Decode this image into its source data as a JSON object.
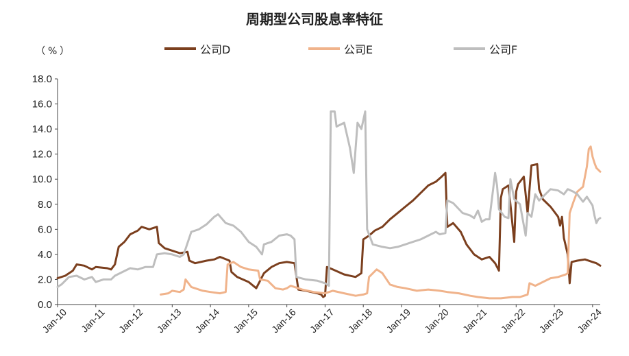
{
  "chart_data": {
    "type": "line",
    "title": "周期型公司股息率特征",
    "unit_label": "（%）",
    "ylim": [
      0,
      18
    ],
    "yticks": [
      "0.0",
      "2.0",
      "4.0",
      "6.0",
      "8.0",
      "10.0",
      "12.0",
      "14.0",
      "16.0",
      "18.0"
    ],
    "xticks": [
      "Jan-10",
      "Jan-11",
      "Jan-12",
      "Jan-13",
      "Jan-14",
      "Jan-15",
      "Jan-16",
      "Jan-17",
      "Jan-18",
      "Jan-19",
      "Jan-20",
      "Jan-21",
      "Jan-22",
      "Jan-23",
      "Jan-24"
    ],
    "x_range": [
      2010.0,
      2024.2
    ],
    "legend_position": "top",
    "series": [
      {
        "name": "公司D",
        "color": "#7B3F1E",
        "points": [
          [
            2010.0,
            2.1
          ],
          [
            2010.2,
            2.3
          ],
          [
            2010.4,
            2.7
          ],
          [
            2010.5,
            3.2
          ],
          [
            2010.7,
            3.1
          ],
          [
            2010.9,
            2.8
          ],
          [
            2011.0,
            3.0
          ],
          [
            2011.3,
            2.9
          ],
          [
            2011.4,
            2.8
          ],
          [
            2011.5,
            3.2
          ],
          [
            2011.6,
            4.6
          ],
          [
            2011.75,
            5.0
          ],
          [
            2011.9,
            5.6
          ],
          [
            2012.1,
            5.9
          ],
          [
            2012.2,
            6.2
          ],
          [
            2012.4,
            6.0
          ],
          [
            2012.6,
            6.2
          ],
          [
            2012.65,
            4.9
          ],
          [
            2012.8,
            4.5
          ],
          [
            2013.0,
            4.3
          ],
          [
            2013.2,
            4.1
          ],
          [
            2013.4,
            4.2
          ],
          [
            2013.45,
            3.5
          ],
          [
            2013.6,
            3.3
          ],
          [
            2013.9,
            3.5
          ],
          [
            2014.1,
            3.6
          ],
          [
            2014.25,
            3.8
          ],
          [
            2014.5,
            3.5
          ],
          [
            2014.55,
            2.6
          ],
          [
            2014.7,
            2.2
          ],
          [
            2015.0,
            1.8
          ],
          [
            2015.2,
            1.3
          ],
          [
            2015.4,
            2.5
          ],
          [
            2015.6,
            3.0
          ],
          [
            2015.8,
            3.3
          ],
          [
            2016.0,
            3.4
          ],
          [
            2016.2,
            3.3
          ],
          [
            2016.3,
            1.2
          ],
          [
            2016.5,
            1.1
          ],
          [
            2016.8,
            0.9
          ],
          [
            2016.9,
            0.8
          ],
          [
            2016.95,
            0.6
          ],
          [
            2017.0,
            0.7
          ],
          [
            2017.05,
            3.0
          ],
          [
            2017.2,
            2.8
          ],
          [
            2017.5,
            2.4
          ],
          [
            2017.8,
            2.2
          ],
          [
            2017.95,
            2.5
          ],
          [
            2018.0,
            5.2
          ],
          [
            2018.15,
            5.5
          ],
          [
            2018.3,
            5.9
          ],
          [
            2018.5,
            6.2
          ],
          [
            2018.7,
            6.8
          ],
          [
            2018.9,
            7.3
          ],
          [
            2019.1,
            7.8
          ],
          [
            2019.3,
            8.3
          ],
          [
            2019.5,
            8.9
          ],
          [
            2019.7,
            9.5
          ],
          [
            2019.9,
            9.8
          ],
          [
            2020.05,
            10.2
          ],
          [
            2020.15,
            10.5
          ],
          [
            2020.2,
            6.2
          ],
          [
            2020.35,
            6.5
          ],
          [
            2020.55,
            5.8
          ],
          [
            2020.7,
            4.8
          ],
          [
            2020.9,
            4.0
          ],
          [
            2021.1,
            3.6
          ],
          [
            2021.3,
            3.8
          ],
          [
            2021.45,
            3.3
          ],
          [
            2021.55,
            2.7
          ],
          [
            2021.6,
            8.5
          ],
          [
            2021.65,
            9.2
          ],
          [
            2021.8,
            9.5
          ],
          [
            2021.95,
            5.0
          ],
          [
            2022.0,
            9.0
          ],
          [
            2022.05,
            9.6
          ],
          [
            2022.2,
            10.2
          ],
          [
            2022.3,
            7.3
          ],
          [
            2022.4,
            11.1
          ],
          [
            2022.55,
            11.2
          ],
          [
            2022.6,
            9.2
          ],
          [
            2022.7,
            8.4
          ],
          [
            2022.9,
            7.8
          ],
          [
            2023.1,
            7.0
          ],
          [
            2023.15,
            6.3
          ],
          [
            2023.2,
            7.0
          ],
          [
            2023.25,
            5.3
          ],
          [
            2023.35,
            4.0
          ],
          [
            2023.4,
            1.7
          ],
          [
            2023.45,
            3.4
          ],
          [
            2023.6,
            3.5
          ],
          [
            2023.8,
            3.6
          ],
          [
            2024.0,
            3.4
          ],
          [
            2024.1,
            3.3
          ],
          [
            2024.2,
            3.1
          ]
        ]
      },
      {
        "name": "公司E",
        "color": "#F0B38B",
        "points": [
          [
            2012.7,
            0.8
          ],
          [
            2012.9,
            0.9
          ],
          [
            2013.0,
            1.1
          ],
          [
            2013.2,
            1.0
          ],
          [
            2013.3,
            1.2
          ],
          [
            2013.35,
            2.0
          ],
          [
            2013.5,
            1.4
          ],
          [
            2013.8,
            1.1
          ],
          [
            2014.0,
            1.0
          ],
          [
            2014.25,
            0.9
          ],
          [
            2014.4,
            1.0
          ],
          [
            2014.45,
            3.2
          ],
          [
            2014.6,
            3.4
          ],
          [
            2014.8,
            3.0
          ],
          [
            2015.0,
            2.8
          ],
          [
            2015.25,
            2.7
          ],
          [
            2015.3,
            2.0
          ],
          [
            2015.5,
            1.9
          ],
          [
            2015.7,
            1.3
          ],
          [
            2015.9,
            1.2
          ],
          [
            2016.0,
            1.3
          ],
          [
            2016.1,
            1.5
          ],
          [
            2016.4,
            1.2
          ],
          [
            2016.7,
            1.0
          ],
          [
            2017.0,
            0.9
          ],
          [
            2017.2,
            1.1
          ],
          [
            2017.5,
            0.9
          ],
          [
            2017.8,
            0.7
          ],
          [
            2018.0,
            0.8
          ],
          [
            2018.1,
            0.9
          ],
          [
            2018.15,
            2.2
          ],
          [
            2018.35,
            2.8
          ],
          [
            2018.5,
            2.5
          ],
          [
            2018.7,
            1.6
          ],
          [
            2018.9,
            1.4
          ],
          [
            2019.1,
            1.3
          ],
          [
            2019.4,
            1.1
          ],
          [
            2019.7,
            1.2
          ],
          [
            2020.0,
            1.1
          ],
          [
            2020.2,
            1.0
          ],
          [
            2020.5,
            0.9
          ],
          [
            2020.8,
            0.7
          ],
          [
            2021.0,
            0.6
          ],
          [
            2021.3,
            0.5
          ],
          [
            2021.6,
            0.5
          ],
          [
            2021.9,
            0.6
          ],
          [
            2022.1,
            0.6
          ],
          [
            2022.3,
            0.8
          ],
          [
            2022.35,
            1.7
          ],
          [
            2022.5,
            1.5
          ],
          [
            2022.7,
            1.8
          ],
          [
            2022.9,
            2.1
          ],
          [
            2023.1,
            2.2
          ],
          [
            2023.3,
            2.4
          ],
          [
            2023.35,
            2.5
          ],
          [
            2023.4,
            7.3
          ],
          [
            2023.5,
            8.2
          ],
          [
            2023.6,
            9.0
          ],
          [
            2023.75,
            9.4
          ],
          [
            2023.85,
            11.0
          ],
          [
            2023.9,
            12.4
          ],
          [
            2023.95,
            12.6
          ],
          [
            2024.0,
            11.8
          ],
          [
            2024.05,
            11.3
          ],
          [
            2024.1,
            10.9
          ],
          [
            2024.2,
            10.6
          ]
        ]
      },
      {
        "name": "公司F",
        "color": "#BEBEBE",
        "points": [
          [
            2010.0,
            1.4
          ],
          [
            2010.1,
            1.6
          ],
          [
            2010.3,
            2.2
          ],
          [
            2010.5,
            2.3
          ],
          [
            2010.7,
            2.0
          ],
          [
            2010.9,
            2.2
          ],
          [
            2011.0,
            1.8
          ],
          [
            2011.2,
            2.0
          ],
          [
            2011.4,
            2.0
          ],
          [
            2011.5,
            2.3
          ],
          [
            2011.7,
            2.6
          ],
          [
            2011.9,
            2.9
          ],
          [
            2012.1,
            2.8
          ],
          [
            2012.3,
            3.0
          ],
          [
            2012.5,
            3.0
          ],
          [
            2012.6,
            4.0
          ],
          [
            2012.8,
            4.1
          ],
          [
            2013.0,
            4.0
          ],
          [
            2013.2,
            3.8
          ],
          [
            2013.3,
            4.0
          ],
          [
            2013.5,
            5.8
          ],
          [
            2013.7,
            6.0
          ],
          [
            2013.9,
            6.4
          ],
          [
            2014.1,
            7.0
          ],
          [
            2014.2,
            7.2
          ],
          [
            2014.4,
            6.5
          ],
          [
            2014.6,
            6.3
          ],
          [
            2014.8,
            5.8
          ],
          [
            2015.0,
            5.0
          ],
          [
            2015.2,
            4.6
          ],
          [
            2015.35,
            4.0
          ],
          [
            2015.4,
            4.8
          ],
          [
            2015.6,
            5.0
          ],
          [
            2015.8,
            5.5
          ],
          [
            2016.0,
            5.6
          ],
          [
            2016.1,
            5.5
          ],
          [
            2016.2,
            5.2
          ],
          [
            2016.25,
            2.2
          ],
          [
            2016.5,
            2.0
          ],
          [
            2016.8,
            1.9
          ],
          [
            2017.0,
            1.7
          ],
          [
            2017.1,
            1.5
          ],
          [
            2017.15,
            15.4
          ],
          [
            2017.25,
            15.4
          ],
          [
            2017.3,
            14.2
          ],
          [
            2017.5,
            14.5
          ],
          [
            2017.65,
            12.5
          ],
          [
            2017.75,
            10.5
          ],
          [
            2017.85,
            14.5
          ],
          [
            2017.95,
            14.0
          ],
          [
            2018.05,
            15.4
          ],
          [
            2018.1,
            6.0
          ],
          [
            2018.25,
            4.8
          ],
          [
            2018.5,
            4.6
          ],
          [
            2018.7,
            4.5
          ],
          [
            2018.9,
            4.6
          ],
          [
            2019.1,
            4.8
          ],
          [
            2019.3,
            5.0
          ],
          [
            2019.5,
            5.2
          ],
          [
            2019.7,
            5.5
          ],
          [
            2019.9,
            5.8
          ],
          [
            2020.0,
            5.6
          ],
          [
            2020.15,
            5.7
          ],
          [
            2020.2,
            8.3
          ],
          [
            2020.35,
            8.1
          ],
          [
            2020.6,
            7.3
          ],
          [
            2020.8,
            7.1
          ],
          [
            2020.9,
            6.9
          ],
          [
            2021.0,
            7.5
          ],
          [
            2021.1,
            6.6
          ],
          [
            2021.2,
            6.8
          ],
          [
            2021.3,
            6.8
          ],
          [
            2021.45,
            10.5
          ],
          [
            2021.5,
            9.5
          ],
          [
            2021.55,
            7.6
          ],
          [
            2021.7,
            7.0
          ],
          [
            2021.8,
            6.9
          ],
          [
            2021.85,
            10.0
          ],
          [
            2021.95,
            8.4
          ],
          [
            2022.1,
            8.0
          ],
          [
            2022.25,
            5.5
          ],
          [
            2022.3,
            7.3
          ],
          [
            2022.4,
            7.0
          ],
          [
            2022.5,
            8.8
          ],
          [
            2022.6,
            8.3
          ],
          [
            2022.7,
            8.6
          ],
          [
            2022.9,
            9.2
          ],
          [
            2023.1,
            9.1
          ],
          [
            2023.25,
            8.8
          ],
          [
            2023.35,
            9.2
          ],
          [
            2023.5,
            9.0
          ],
          [
            2023.6,
            8.8
          ],
          [
            2023.75,
            8.2
          ],
          [
            2023.85,
            8.6
          ],
          [
            2024.0,
            7.9
          ],
          [
            2024.05,
            7.1
          ],
          [
            2024.1,
            6.5
          ],
          [
            2024.15,
            6.8
          ],
          [
            2024.2,
            6.9
          ]
        ]
      }
    ]
  }
}
